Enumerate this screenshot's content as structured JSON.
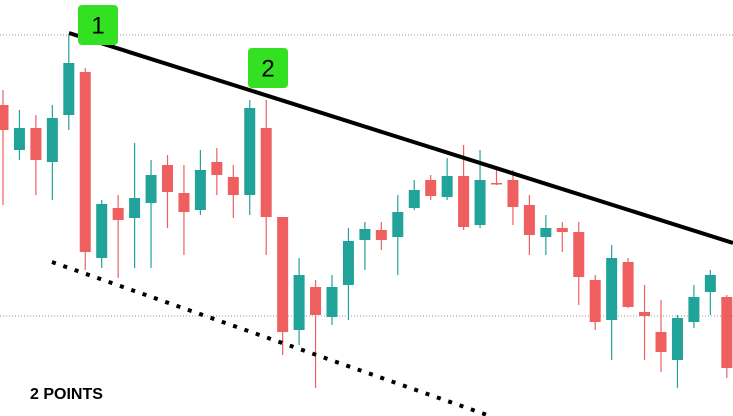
{
  "chart_data": {
    "type": "candlestick",
    "ylim": [
      0,
      416
    ],
    "up_color": "#22a39a",
    "down_color": "#ef5f5f",
    "open": [
      311,
      266,
      288,
      254,
      301,
      344,
      158,
      208,
      198,
      213,
      251,
      223,
      206,
      254,
      239,
      221,
      288,
      199,
      86,
      129,
      99,
      131,
      176,
      186,
      179,
      208,
      236,
      219,
      240,
      191,
      233,
      236,
      211,
      179,
      188,
      184,
      136,
      96,
      154,
      104,
      84,
      56,
      94,
      124,
      119
    ],
    "high": [
      326,
      306,
      301,
      311,
      381,
      348,
      216,
      221,
      273,
      256,
      261,
      251,
      266,
      268,
      251,
      316,
      316,
      199,
      158,
      136,
      141,
      188,
      194,
      194,
      221,
      236,
      241,
      258,
      271,
      266,
      248,
      246,
      221,
      201,
      194,
      194,
      141,
      171,
      158,
      131,
      116,
      101,
      131,
      146,
      121
    ],
    "low": [
      211,
      256,
      221,
      216,
      286,
      146,
      148,
      138,
      148,
      148,
      188,
      161,
      201,
      221,
      198,
      201,
      161,
      61,
      71,
      28,
      91,
      96,
      146,
      166,
      141,
      206,
      216,
      216,
      186,
      188,
      231,
      191,
      161,
      161,
      164,
      111,
      86,
      56,
      108,
      56,
      44,
      28,
      88,
      101,
      38
    ],
    "close": [
      286,
      288,
      256,
      298,
      353,
      164,
      212,
      196,
      218,
      241,
      224,
      204,
      246,
      241,
      221,
      308,
      199,
      84,
      141,
      101,
      129,
      175,
      187,
      176,
      204,
      226,
      220,
      240,
      189,
      236,
      232,
      209,
      181,
      188,
      184,
      139,
      94,
      158,
      109,
      100,
      64,
      98,
      119,
      141,
      48
    ],
    "annotations": [
      "1",
      "2"
    ],
    "caption": "2 POINTS"
  }
}
